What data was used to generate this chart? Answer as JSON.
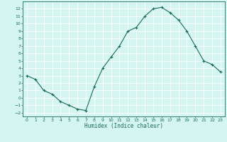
{
  "title": "",
  "xlabel": "Humidex (Indice chaleur)",
  "ylabel": "",
  "x": [
    0,
    1,
    2,
    3,
    4,
    5,
    6,
    7,
    8,
    9,
    10,
    11,
    12,
    13,
    14,
    15,
    16,
    17,
    18,
    19,
    20,
    21,
    22,
    23
  ],
  "y": [
    3,
    2.5,
    1,
    0.5,
    -0.5,
    -1,
    -1.5,
    -1.7,
    1.5,
    4,
    5.5,
    7,
    9,
    9.5,
    11,
    12,
    12.2,
    11.5,
    10.5,
    9,
    7,
    5,
    4.5,
    3.5
  ],
  "line_color": "#1a6b5a",
  "bg_color": "#d5f5f0",
  "grid_color": "#ffffff",
  "xlim": [
    -0.5,
    23.5
  ],
  "ylim": [
    -2.5,
    13
  ],
  "yticks": [
    -2,
    -1,
    0,
    1,
    2,
    3,
    4,
    5,
    6,
    7,
    8,
    9,
    10,
    11,
    12
  ],
  "xticks": [
    0,
    1,
    2,
    3,
    4,
    5,
    6,
    7,
    8,
    9,
    10,
    11,
    12,
    13,
    14,
    15,
    16,
    17,
    18,
    19,
    20,
    21,
    22,
    23
  ]
}
